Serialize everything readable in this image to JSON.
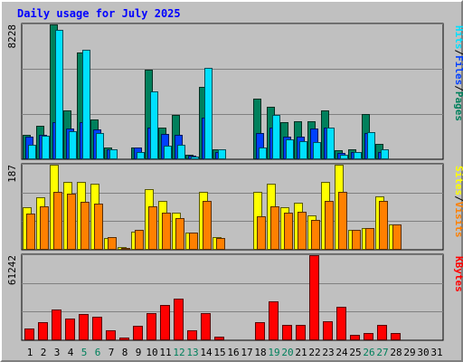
{
  "title": "Daily usage for July 2025",
  "colors": {
    "pages": "#00805c",
    "files": "#0040ff",
    "hits": "#00e0ff",
    "visits": "#ffff00",
    "sites": "#ff8000",
    "kbytes": "#ff0000",
    "weekday_label": "#000000",
    "weekend_label": "#00805c",
    "separator": "#000000",
    "title": "#0000ff"
  },
  "chart_data": [
    {
      "type": "bar",
      "panel": "hits_files_pages",
      "ymax_label": "8228",
      "ylim": [
        0,
        8228
      ],
      "grid": true,
      "categories": [
        "1",
        "2",
        "3",
        "4",
        "5",
        "6",
        "7",
        "8",
        "9",
        "10",
        "11",
        "12",
        "13",
        "14",
        "15",
        "16",
        "17",
        "18",
        "19",
        "20",
        "21",
        "22",
        "23",
        "24",
        "25",
        "26",
        "27",
        "28",
        "29",
        "30",
        "31"
      ],
      "side_labels": [
        "Pages",
        "Files",
        "Hits"
      ],
      "series": [
        {
          "name": "Pages",
          "values": [
            1480,
            2040,
            8228,
            3000,
            6520,
            2450,
            740,
            70,
            740,
            5440,
            1920,
            2690,
            260,
            4400,
            620,
            0,
            0,
            3710,
            3220,
            2240,
            2330,
            2330,
            2990,
            560,
            630,
            2760,
            960,
            0,
            0,
            0,
            0
          ]
        },
        {
          "name": "Files",
          "values": [
            1400,
            1510,
            2260,
            1890,
            2240,
            1800,
            600,
            10,
            700,
            1920,
            1520,
            1500,
            200,
            2530,
            440,
            0,
            0,
            1600,
            1910,
            1400,
            1370,
            1870,
            1930,
            360,
            460,
            1600,
            460,
            0,
            0,
            0,
            0
          ]
        },
        {
          "name": "Hits",
          "values": [
            890,
            1450,
            7900,
            1730,
            6700,
            1590,
            600,
            0,
            450,
            4120,
            850,
            900,
            180,
            5590,
            580,
            0,
            0,
            710,
            2720,
            1230,
            1130,
            1030,
            1930,
            270,
            460,
            1640,
            600,
            0,
            0,
            0,
            0
          ]
        }
      ]
    },
    {
      "type": "bar",
      "panel": "visits_sites",
      "ymax_label": "187",
      "ylim": [
        0,
        187
      ],
      "grid": true,
      "categories": [
        "1",
        "2",
        "3",
        "4",
        "5",
        "6",
        "7",
        "8",
        "9",
        "10",
        "11",
        "12",
        "13",
        "14",
        "15",
        "16",
        "17",
        "18",
        "19",
        "20",
        "21",
        "22",
        "23",
        "24",
        "25",
        "26",
        "27",
        "28",
        "29",
        "30",
        "31"
      ],
      "side_labels": [
        "Visits",
        "Sites"
      ],
      "series": [
        {
          "name": "Visits",
          "values": [
            93,
            116,
            187,
            150,
            150,
            145,
            26,
            6,
            39,
            134,
            107,
            81,
            38,
            128,
            27,
            0,
            0,
            128,
            145,
            94,
            104,
            75,
            150,
            187,
            44,
            48,
            117,
            56,
            0,
            0,
            0
          ]
        },
        {
          "name": "Sites",
          "values": [
            80,
            95,
            127,
            123,
            105,
            102,
            27,
            3,
            43,
            96,
            82,
            70,
            38,
            108,
            26,
            0,
            0,
            73,
            95,
            81,
            84,
            65,
            108,
            127,
            44,
            48,
            108,
            56,
            0,
            0,
            0
          ]
        }
      ]
    },
    {
      "type": "bar",
      "panel": "kbytes",
      "ymax_label": "61242",
      "ylim": [
        0,
        61242
      ],
      "grid": true,
      "categories": [
        "1",
        "2",
        "3",
        "4",
        "5",
        "6",
        "7",
        "8",
        "9",
        "10",
        "11",
        "12",
        "13",
        "14",
        "15",
        "16",
        "17",
        "18",
        "19",
        "20",
        "21",
        "22",
        "23",
        "24",
        "25",
        "26",
        "27",
        "28",
        "29",
        "30",
        "31"
      ],
      "side_labels": [
        "KBytes"
      ],
      "series": [
        {
          "name": "KBytes",
          "values": [
            8520,
            12780,
            22150,
            15330,
            18700,
            17030,
            6860,
            1680,
            10250,
            19600,
            25550,
            29800,
            7090,
            19600,
            2340,
            0,
            0,
            12780,
            28100,
            11100,
            11100,
            61242,
            13430,
            23850,
            4040,
            5110,
            11100,
            5530,
            0,
            0,
            0
          ]
        }
      ]
    }
  ],
  "weekend_days": [
    "5",
    "6",
    "12",
    "13",
    "19",
    "20",
    "26",
    "27"
  ]
}
